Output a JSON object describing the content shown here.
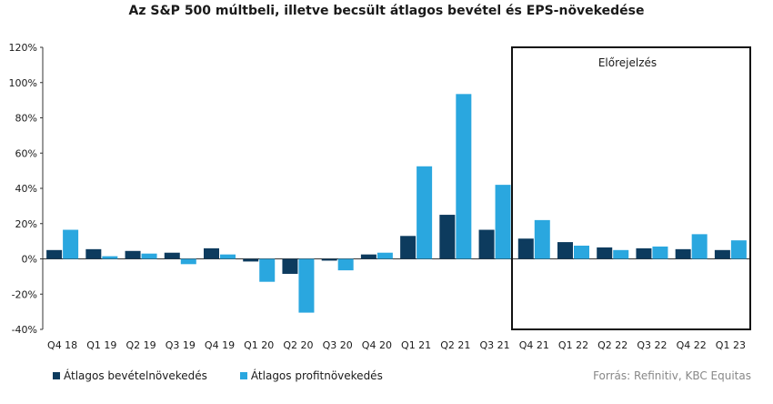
{
  "chart_data": {
    "type": "bar",
    "title": "Az S&P 500 múltbeli, illetve becsült átlagos bevétel és EPS-növekedése",
    "categories": [
      "Q4 18",
      "Q1 19",
      "Q2 19",
      "Q3 19",
      "Q4 19",
      "Q1 20",
      "Q2 20",
      "Q3 20",
      "Q4 20",
      "Q1 21",
      "Q2 21",
      "Q3 21",
      "Q4 21",
      "Q1 22",
      "Q2 22",
      "Q3 22",
      "Q4 22",
      "Q1 23"
    ],
    "series": [
      {
        "name": "Átlagos bevételnövekedés",
        "color": "#0d3b5e",
        "values": [
          5,
          5.5,
          4.5,
          3.5,
          6,
          -1.5,
          -8.5,
          -1,
          2.5,
          13,
          25,
          16.5,
          11.5,
          9.5,
          6.5,
          6,
          5.5,
          5
        ]
      },
      {
        "name": "Átlagos profitnövekedés",
        "color": "#2aa7df",
        "values": [
          16.5,
          1.5,
          3,
          -3,
          2.5,
          -13,
          -30.5,
          -6.5,
          3.5,
          52.5,
          93.5,
          42,
          22,
          7.5,
          5,
          7,
          14,
          10.5
        ]
      }
    ],
    "ylim": [
      -40,
      120
    ],
    "yticks": [
      -40,
      -20,
      0,
      20,
      40,
      60,
      80,
      100,
      120
    ],
    "ytick_labels": [
      "-40%",
      "-20%",
      "0%",
      "20%",
      "40%",
      "60%",
      "80%",
      "100%",
      "120%"
    ],
    "forecast_label": "Előrejelzés",
    "forecast_start_category": "Q4 21",
    "grid": false,
    "legend_position": "bottom-left"
  },
  "source": "Forrás: Refinitiv, KBC Equitas"
}
